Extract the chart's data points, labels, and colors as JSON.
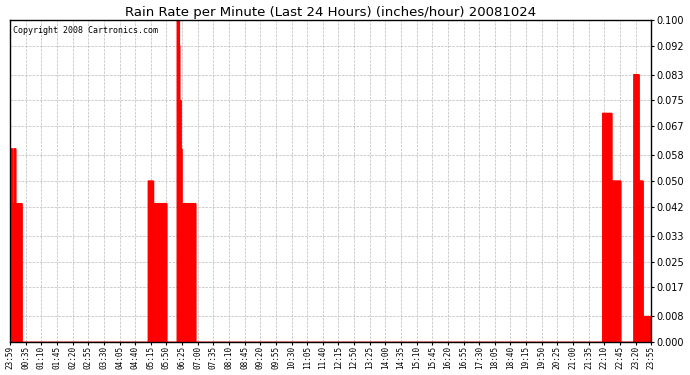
{
  "title": "Rain Rate per Minute (Last 24 Hours) (inches/hour) 20081024",
  "copyright": "Copyright 2008 Cartronics.com",
  "line_color": "#ff0000",
  "bg_color": "#ffffff",
  "grid_color": "#bbbbbb",
  "ylim": [
    0.0,
    0.1
  ],
  "yticks": [
    0.0,
    0.008,
    0.017,
    0.025,
    0.033,
    0.042,
    0.05,
    0.058,
    0.067,
    0.075,
    0.083,
    0.092,
    0.1
  ],
  "x_labels": [
    "23:59",
    "00:35",
    "01:10",
    "01:45",
    "02:20",
    "02:55",
    "03:30",
    "04:05",
    "04:40",
    "05:15",
    "05:50",
    "06:25",
    "07:00",
    "07:35",
    "08:10",
    "08:45",
    "09:20",
    "09:55",
    "10:30",
    "11:05",
    "11:40",
    "12:15",
    "12:50",
    "13:25",
    "14:00",
    "14:35",
    "15:10",
    "15:45",
    "16:20",
    "16:55",
    "17:30",
    "18:05",
    "18:40",
    "19:15",
    "19:50",
    "20:25",
    "21:00",
    "21:35",
    "22:10",
    "22:45",
    "23:20",
    "23:55"
  ],
  "n_points": 1440,
  "rain_data": [
    [
      0,
      0.06
    ],
    [
      1,
      0.06
    ],
    [
      2,
      0.06
    ],
    [
      3,
      0.06
    ],
    [
      4,
      0.06
    ],
    [
      5,
      0.043
    ],
    [
      6,
      0.043
    ],
    [
      7,
      0.043
    ],
    [
      8,
      0.043
    ],
    [
      9,
      0.06
    ],
    [
      10,
      0.06
    ],
    [
      11,
      0.06
    ],
    [
      12,
      0.043
    ],
    [
      13,
      0.043
    ],
    [
      14,
      0.043
    ],
    [
      15,
      0.043
    ],
    [
      16,
      0.043
    ],
    [
      17,
      0.043
    ],
    [
      18,
      0.043
    ],
    [
      19,
      0.043
    ],
    [
      20,
      0.043
    ],
    [
      21,
      0.043
    ],
    [
      22,
      0.043
    ],
    [
      23,
      0.043
    ],
    [
      24,
      0.043
    ],
    [
      25,
      0.043
    ],
    [
      310,
      0.05
    ],
    [
      311,
      0.05
    ],
    [
      312,
      0.05
    ],
    [
      313,
      0.05
    ],
    [
      314,
      0.05
    ],
    [
      315,
      0.05
    ],
    [
      316,
      0.05
    ],
    [
      317,
      0.05
    ],
    [
      318,
      0.05
    ],
    [
      319,
      0.05
    ],
    [
      320,
      0.05
    ],
    [
      321,
      0.043
    ],
    [
      322,
      0.043
    ],
    [
      323,
      0.043
    ],
    [
      324,
      0.043
    ],
    [
      325,
      0.043
    ],
    [
      326,
      0.043
    ],
    [
      327,
      0.043
    ],
    [
      328,
      0.043
    ],
    [
      329,
      0.043
    ],
    [
      330,
      0.043
    ],
    [
      331,
      0.043
    ],
    [
      332,
      0.043
    ],
    [
      333,
      0.043
    ],
    [
      334,
      0.043
    ],
    [
      335,
      0.043
    ],
    [
      336,
      0.043
    ],
    [
      337,
      0.043
    ],
    [
      338,
      0.043
    ],
    [
      339,
      0.043
    ],
    [
      340,
      0.043
    ],
    [
      341,
      0.043
    ],
    [
      342,
      0.043
    ],
    [
      343,
      0.043
    ],
    [
      344,
      0.043
    ],
    [
      345,
      0.043
    ],
    [
      346,
      0.043
    ],
    [
      347,
      0.043
    ],
    [
      348,
      0.043
    ],
    [
      349,
      0.043
    ],
    [
      350,
      0.043
    ],
    [
      375,
      0.1
    ],
    [
      376,
      0.1
    ],
    [
      377,
      0.1
    ],
    [
      378,
      0.1
    ],
    [
      379,
      0.092
    ],
    [
      380,
      0.075
    ],
    [
      381,
      0.075
    ],
    [
      382,
      0.075
    ],
    [
      383,
      0.06
    ],
    [
      384,
      0.06
    ],
    [
      385,
      0.043
    ],
    [
      386,
      0.043
    ],
    [
      387,
      0.043
    ],
    [
      388,
      0.043
    ],
    [
      389,
      0.043
    ],
    [
      390,
      0.043
    ],
    [
      391,
      0.043
    ],
    [
      392,
      0.043
    ],
    [
      393,
      0.043
    ],
    [
      394,
      0.043
    ],
    [
      395,
      0.043
    ],
    [
      396,
      0.043
    ],
    [
      397,
      0.043
    ],
    [
      398,
      0.043
    ],
    [
      399,
      0.043
    ],
    [
      400,
      0.043
    ],
    [
      401,
      0.043
    ],
    [
      402,
      0.043
    ],
    [
      403,
      0.043
    ],
    [
      404,
      0.043
    ],
    [
      405,
      0.043
    ],
    [
      406,
      0.043
    ],
    [
      407,
      0.043
    ],
    [
      408,
      0.043
    ],
    [
      409,
      0.043
    ],
    [
      410,
      0.043
    ],
    [
      411,
      0.043
    ],
    [
      412,
      0.043
    ],
    [
      413,
      0.043
    ],
    [
      414,
      0.043
    ],
    [
      415,
      0.043
    ],
    [
      1330,
      0.071
    ],
    [
      1331,
      0.071
    ],
    [
      1332,
      0.071
    ],
    [
      1333,
      0.071
    ],
    [
      1334,
      0.071
    ],
    [
      1335,
      0.071
    ],
    [
      1336,
      0.071
    ],
    [
      1337,
      0.071
    ],
    [
      1338,
      0.071
    ],
    [
      1339,
      0.071
    ],
    [
      1340,
      0.071
    ],
    [
      1341,
      0.071
    ],
    [
      1342,
      0.071
    ],
    [
      1343,
      0.071
    ],
    [
      1344,
      0.071
    ],
    [
      1345,
      0.071
    ],
    [
      1346,
      0.071
    ],
    [
      1347,
      0.071
    ],
    [
      1348,
      0.071
    ],
    [
      1349,
      0.071
    ],
    [
      1350,
      0.05
    ],
    [
      1351,
      0.05
    ],
    [
      1352,
      0.05
    ],
    [
      1353,
      0.05
    ],
    [
      1354,
      0.05
    ],
    [
      1355,
      0.05
    ],
    [
      1356,
      0.05
    ],
    [
      1357,
      0.05
    ],
    [
      1358,
      0.05
    ],
    [
      1359,
      0.05
    ],
    [
      1360,
      0.05
    ],
    [
      1361,
      0.05
    ],
    [
      1362,
      0.05
    ],
    [
      1363,
      0.05
    ],
    [
      1364,
      0.05
    ],
    [
      1365,
      0.05
    ],
    [
      1366,
      0.05
    ],
    [
      1367,
      0.05
    ],
    [
      1368,
      0.05
    ],
    [
      1369,
      0.05
    ],
    [
      1400,
      0.083
    ],
    [
      1401,
      0.083
    ],
    [
      1402,
      0.083
    ],
    [
      1403,
      0.083
    ],
    [
      1404,
      0.083
    ],
    [
      1405,
      0.083
    ],
    [
      1406,
      0.083
    ],
    [
      1407,
      0.083
    ],
    [
      1408,
      0.083
    ],
    [
      1409,
      0.083
    ],
    [
      1410,
      0.083
    ],
    [
      1411,
      0.05
    ],
    [
      1412,
      0.05
    ],
    [
      1413,
      0.05
    ],
    [
      1414,
      0.05
    ],
    [
      1415,
      0.05
    ],
    [
      1416,
      0.05
    ],
    [
      1417,
      0.05
    ],
    [
      1418,
      0.05
    ],
    [
      1419,
      0.05
    ],
    [
      1420,
      0.008
    ],
    [
      1421,
      0.008
    ],
    [
      1422,
      0.008
    ],
    [
      1423,
      0.008
    ],
    [
      1424,
      0.008
    ],
    [
      1425,
      0.008
    ],
    [
      1426,
      0.008
    ],
    [
      1427,
      0.008
    ],
    [
      1428,
      0.008
    ],
    [
      1429,
      0.008
    ],
    [
      1430,
      0.008
    ],
    [
      1431,
      0.008
    ],
    [
      1432,
      0.008
    ],
    [
      1433,
      0.008
    ],
    [
      1434,
      0.008
    ],
    [
      1435,
      0.008
    ],
    [
      1436,
      0.008
    ],
    [
      1437,
      0.008
    ],
    [
      1438,
      0.008
    ],
    [
      1439,
      0.008
    ]
  ]
}
